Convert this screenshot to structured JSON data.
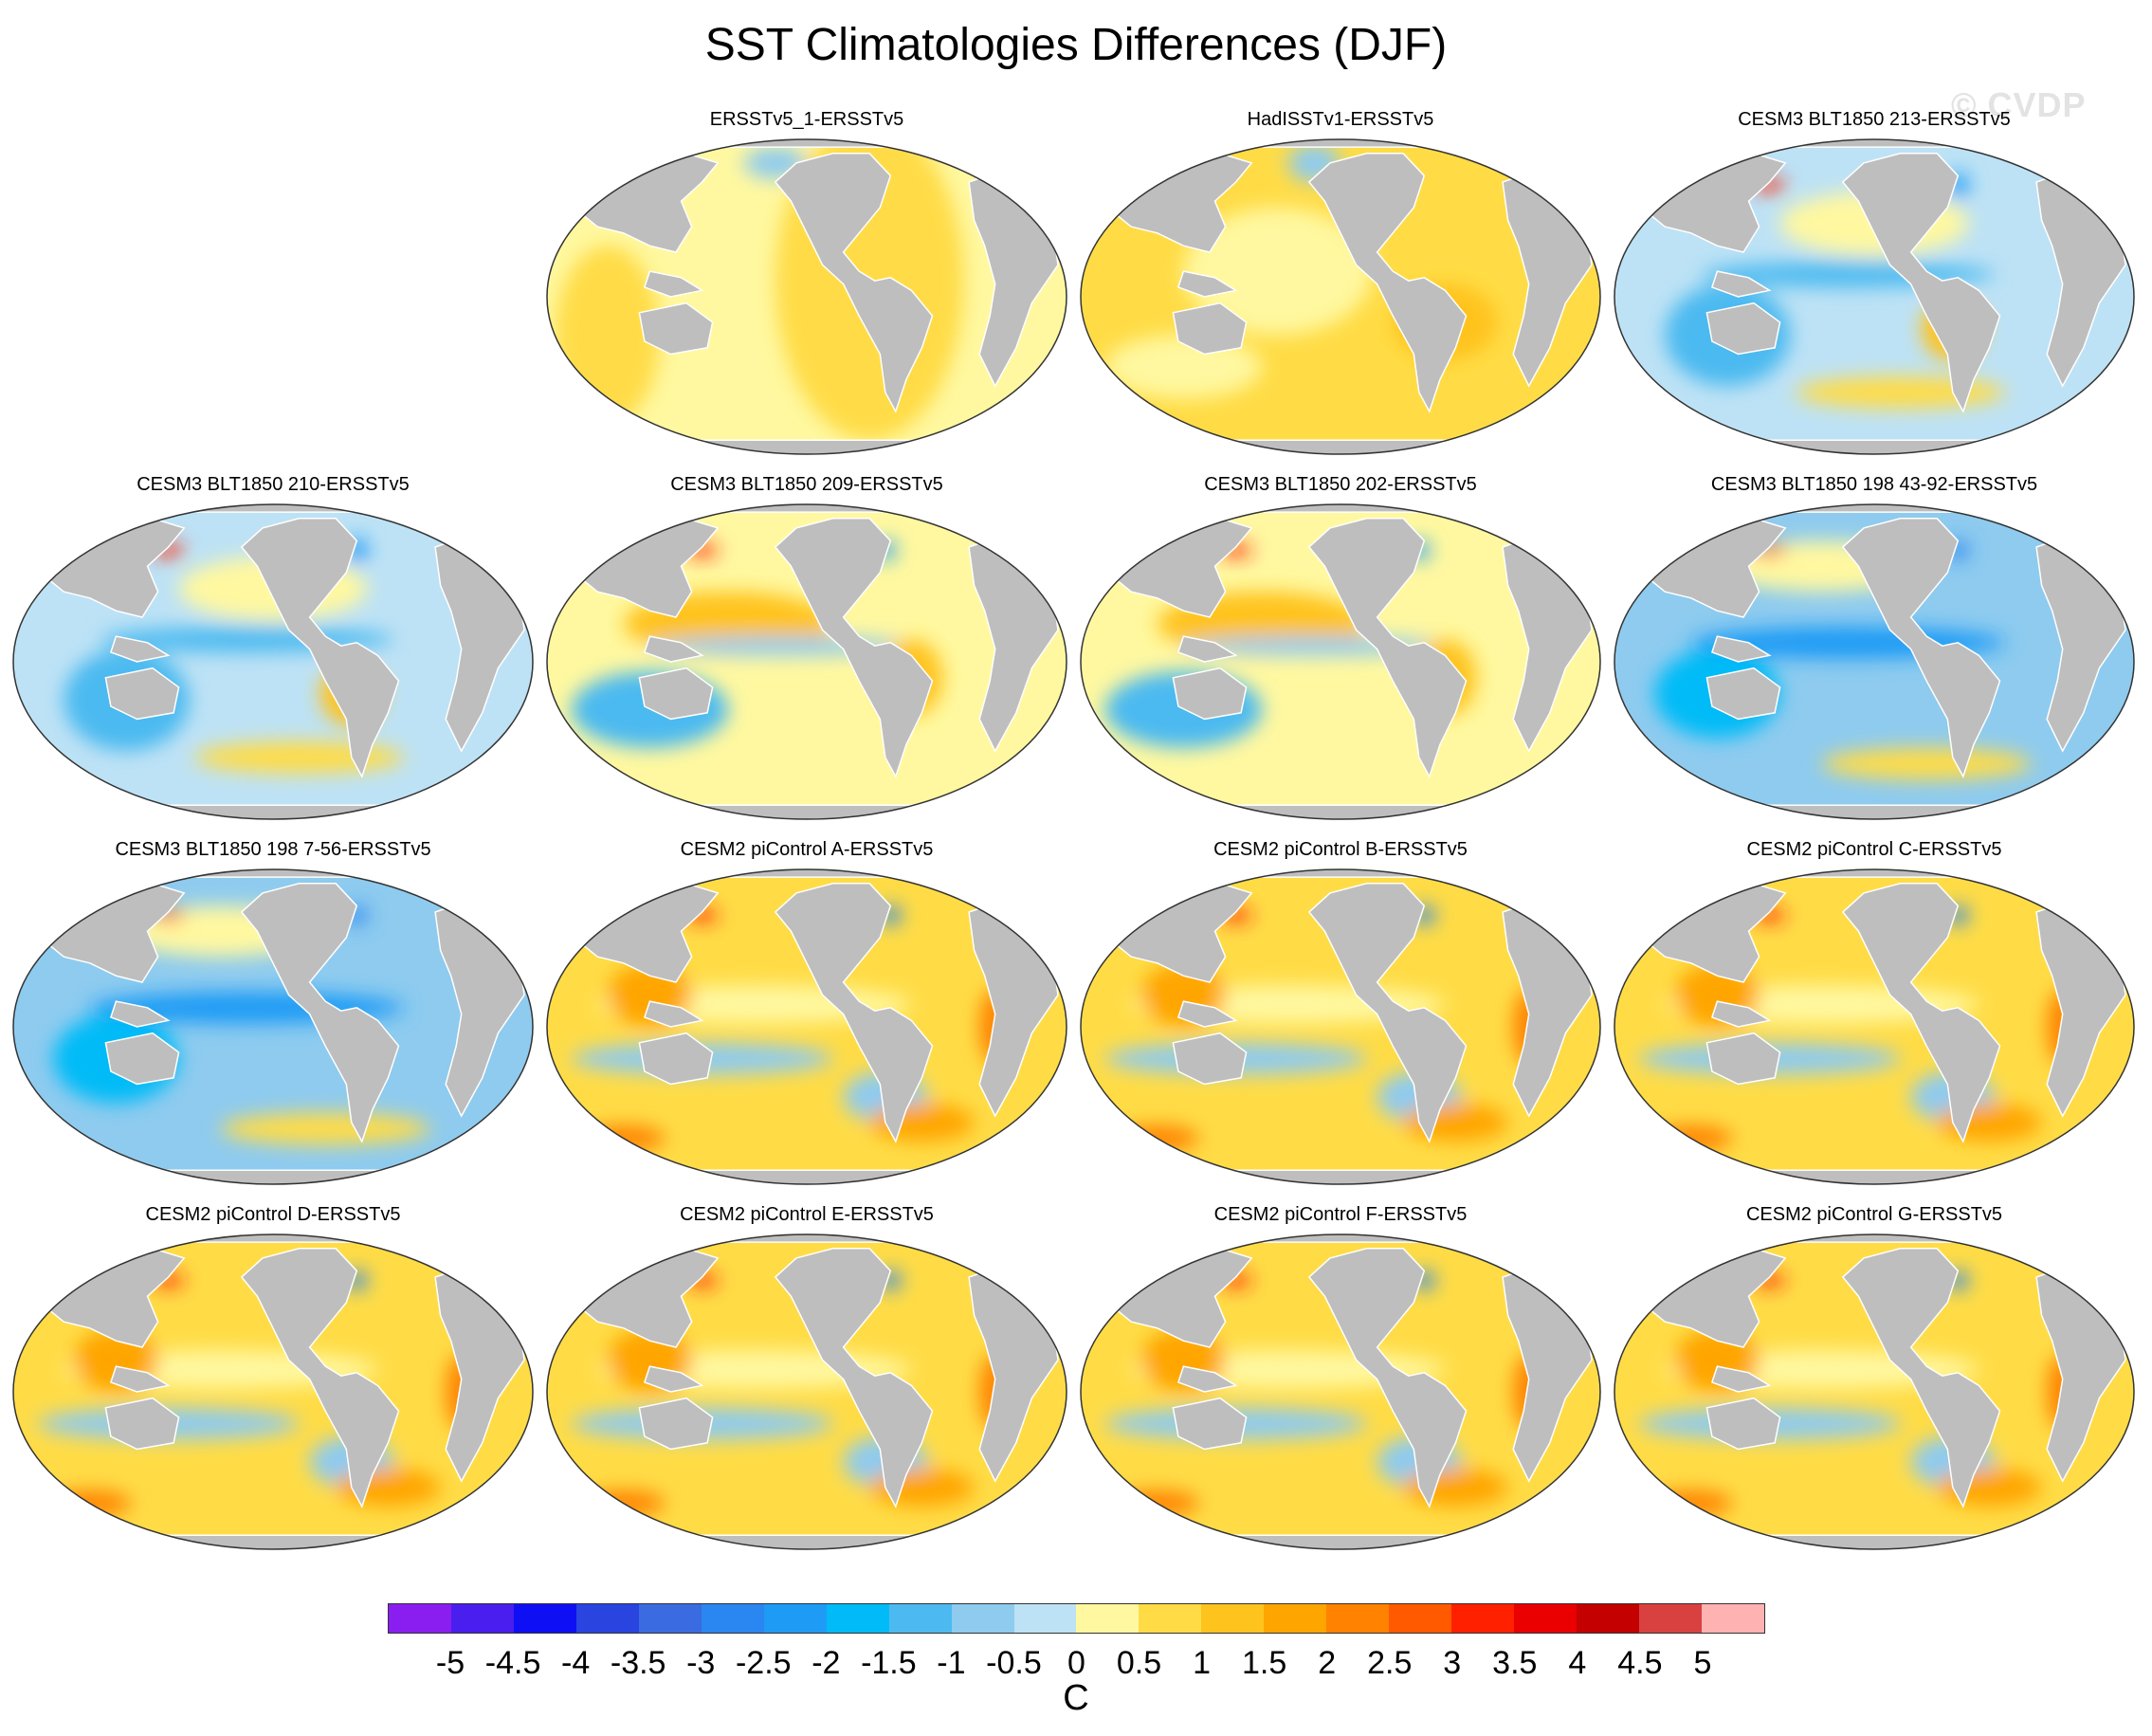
{
  "figure": {
    "title": "SST Climatologies Differences (DJF)",
    "watermark": "© CVDP",
    "units": "C"
  },
  "colors": {
    "land": "#bebebe",
    "coast": "#ffffff",
    "outline": "#333333"
  },
  "colorbar": {
    "labels": [
      "-5",
      "-4.5",
      "-4",
      "-3.5",
      "-3",
      "-2.5",
      "-2",
      "-1.5",
      "-1",
      "-0.5",
      "0",
      "0.5",
      "1",
      "1.5",
      "2",
      "2.5",
      "3",
      "3.5",
      "4",
      "4.5",
      "5"
    ],
    "colors": [
      "#8a1ef0",
      "#4a1eee",
      "#0f0ff5",
      "#2a44e0",
      "#3a6be0",
      "#2a86f0",
      "#1e9bf5",
      "#00bbf7",
      "#4cbaf0",
      "#8ecbef",
      "#bde2f5",
      "#fff8a0",
      "#ffdc46",
      "#ffc31e",
      "#ffa500",
      "#ff8200",
      "#ff5a00",
      "#ff2000",
      "#ea0000",
      "#c40000",
      "#d94040",
      "#ffb2b2"
    ]
  },
  "panels": [
    {
      "title": "ERSSTv5_1-ERSSTv5",
      "style": "pale"
    },
    {
      "title": "HadISSTv1-ERSSTv5",
      "style": "light"
    },
    {
      "title": "CESM3 BLT1850 213-ERSSTv5",
      "style": "cool"
    },
    {
      "title": "CESM3 BLT1850 210-ERSSTv5",
      "style": "cool"
    },
    {
      "title": "CESM3 BLT1850 209-ERSSTv5",
      "style": "mixed"
    },
    {
      "title": "CESM3 BLT1850 202-ERSSTv5",
      "style": "mixed"
    },
    {
      "title": "CESM3 BLT1850 198 43-92-ERSSTv5",
      "style": "cold"
    },
    {
      "title": "CESM3 BLT1850 198 7-56-ERSSTv5",
      "style": "cold"
    },
    {
      "title": "CESM2 piControl A-ERSSTv5",
      "style": "warm"
    },
    {
      "title": "CESM2 piControl B-ERSSTv5",
      "style": "warm"
    },
    {
      "title": "CESM2 piControl C-ERSSTv5",
      "style": "warm"
    },
    {
      "title": "CESM2 piControl D-ERSSTv5",
      "style": "warm"
    },
    {
      "title": "CESM2 piControl E-ERSSTv5",
      "style": "warm"
    },
    {
      "title": "CESM2 piControl F-ERSSTv5",
      "style": "warm"
    },
    {
      "title": "CESM2 piControl G-ERSSTv5",
      "style": "warm"
    }
  ]
}
